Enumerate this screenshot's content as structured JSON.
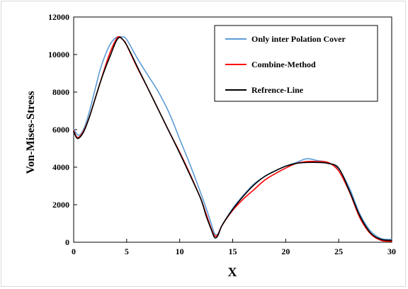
{
  "chart_data": {
    "type": "line",
    "title": "",
    "xlabel": "X",
    "ylabel": "Von-Mises-Stress",
    "xlim": [
      0,
      30
    ],
    "ylim": [
      0,
      12000
    ],
    "xticks": [
      0,
      5,
      10,
      15,
      20,
      25,
      30
    ],
    "yticks": [
      0,
      2000,
      4000,
      6000,
      8000,
      10000,
      12000
    ],
    "grid": false,
    "legend_position": "top-right",
    "series": [
      {
        "name": "Only inter Polation Cover",
        "color": "#5b9bd5",
        "x": [
          0,
          0.5,
          1,
          1.5,
          2,
          2.5,
          3,
          3.5,
          4,
          4.5,
          5,
          6,
          7,
          8,
          9,
          10,
          11,
          12,
          12.5,
          13,
          13.3,
          13.6,
          14,
          15,
          16,
          17,
          18,
          19,
          20,
          21,
          22,
          23,
          24,
          25,
          26,
          27,
          28,
          29,
          30
        ],
        "y": [
          6000,
          5700,
          6100,
          7000,
          8100,
          9200,
          10000,
          10600,
          10900,
          10950,
          10800,
          9800,
          8900,
          8000,
          6900,
          5500,
          4100,
          2600,
          1800,
          950,
          450,
          450,
          900,
          1800,
          2500,
          3100,
          3500,
          3800,
          4050,
          4250,
          4450,
          4350,
          4250,
          3900,
          2900,
          1500,
          600,
          200,
          150
        ]
      },
      {
        "name": "Combine-Method",
        "color": "#ff0000",
        "x": [
          0,
          0.3,
          0.6,
          1,
          1.5,
          2,
          2.5,
          3,
          3.5,
          4,
          4.3,
          4.8,
          5,
          6,
          7,
          8,
          9,
          10,
          11,
          12,
          12.5,
          13,
          13.3,
          13.6,
          14,
          15,
          16,
          17,
          18,
          19,
          20,
          21,
          22,
          23,
          24,
          25,
          26,
          27,
          28,
          29,
          30
        ],
        "y": [
          5950,
          5600,
          5650,
          6000,
          6700,
          7600,
          8500,
          9400,
          10200,
          10800,
          10950,
          10700,
          10500,
          9300,
          8200,
          7050,
          5900,
          4800,
          3600,
          2300,
          1500,
          700,
          350,
          400,
          900,
          1700,
          2300,
          2800,
          3300,
          3650,
          3950,
          4200,
          4300,
          4300,
          4250,
          3800,
          2700,
          1300,
          450,
          100,
          50
        ]
      },
      {
        "name": "Refrence-Line",
        "color": "#000000",
        "x": [
          0,
          0.3,
          0.6,
          1,
          1.5,
          2,
          2.5,
          3,
          3.5,
          4,
          4.4,
          5,
          6,
          7,
          8,
          9,
          10,
          11,
          12,
          12.5,
          13,
          13.3,
          13.6,
          14,
          15,
          16,
          17,
          18,
          19,
          20,
          21,
          22,
          23,
          24,
          25,
          26,
          27,
          28,
          29,
          30
        ],
        "y": [
          5900,
          5550,
          5600,
          5950,
          6700,
          7600,
          8500,
          9300,
          10000,
          10700,
          10900,
          10500,
          9350,
          8200,
          7050,
          5900,
          4750,
          3550,
          2300,
          1400,
          650,
          250,
          350,
          900,
          1750,
          2450,
          3050,
          3500,
          3800,
          4050,
          4200,
          4250,
          4250,
          4200,
          3950,
          2750,
          1400,
          500,
          150,
          100
        ]
      }
    ]
  }
}
